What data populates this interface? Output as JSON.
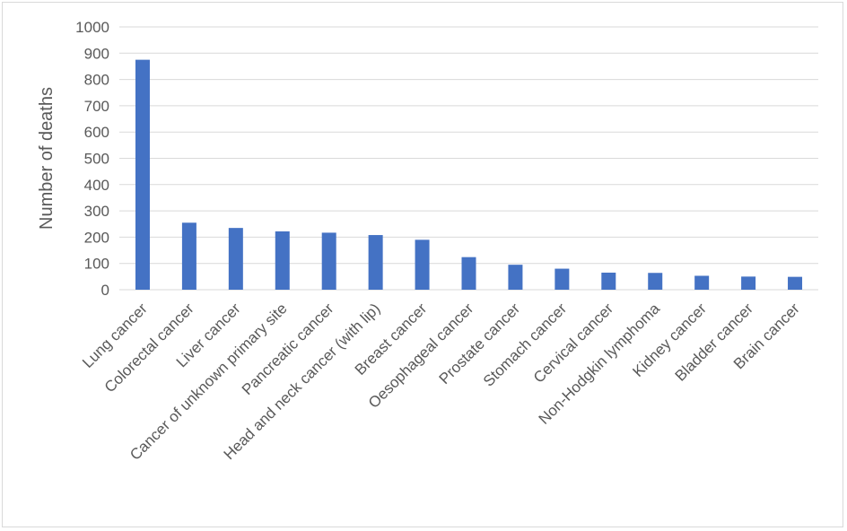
{
  "chart_data": {
    "type": "bar",
    "ylabel": "Number of deaths",
    "xlabel": "",
    "ylim": [
      0,
      1000
    ],
    "yticks": [
      0,
      100,
      200,
      300,
      400,
      500,
      600,
      700,
      800,
      900,
      1000
    ],
    "grid": true,
    "categories": [
      "Lung cancer",
      "Colorectal cancer",
      "Liver cancer",
      "Cancer of unknown primary site",
      "Pancreatic cancer",
      "Head and neck cancer (with lip)",
      "Breast cancer",
      "Oesophageal cancer",
      "Prostate cancer",
      "Stomach cancer",
      "Cervical cancer",
      "Non-Hodgkin lymphoma",
      "Kidney cancer",
      "Bladder cancer",
      "Brain cancer"
    ],
    "values": [
      875,
      255,
      235,
      222,
      217,
      208,
      190,
      124,
      95,
      80,
      65,
      64,
      53,
      50,
      49
    ],
    "colors": {
      "bar": "#4472C4",
      "grid": "#d9d9d9",
      "text": "#595959"
    }
  }
}
